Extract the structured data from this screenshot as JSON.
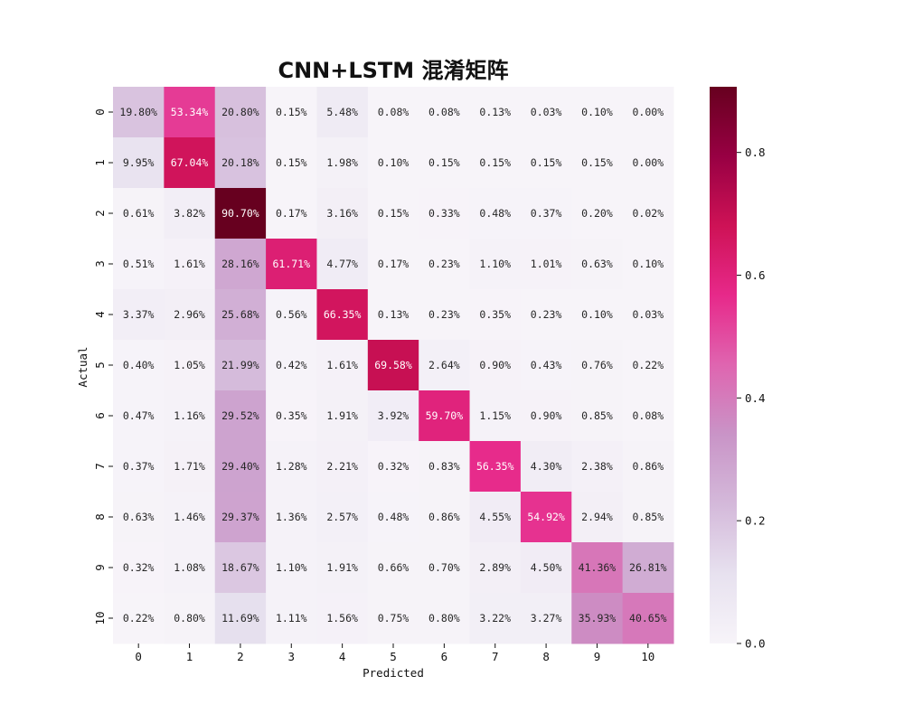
{
  "chart_data": {
    "type": "heatmap",
    "title": "CNN+LSTM 混淆矩阵",
    "xlabel": "Predicted",
    "ylabel": "Actual",
    "x_categories": [
      "0",
      "1",
      "2",
      "3",
      "4",
      "5",
      "6",
      "7",
      "8",
      "9",
      "10"
    ],
    "y_categories": [
      "0",
      "1",
      "2",
      "3",
      "4",
      "5",
      "6",
      "7",
      "8",
      "9",
      "10"
    ],
    "values": [
      [
        19.8,
        53.34,
        20.8,
        0.15,
        5.48,
        0.08,
        0.08,
        0.13,
        0.03,
        0.1,
        0.0
      ],
      [
        9.95,
        67.04,
        20.18,
        0.15,
        1.98,
        0.1,
        0.15,
        0.15,
        0.15,
        0.15,
        0.0
      ],
      [
        0.61,
        3.82,
        90.7,
        0.17,
        3.16,
        0.15,
        0.33,
        0.48,
        0.37,
        0.2,
        0.02
      ],
      [
        0.51,
        1.61,
        28.16,
        61.71,
        4.77,
        0.17,
        0.23,
        1.1,
        1.01,
        0.63,
        0.1
      ],
      [
        3.37,
        2.96,
        25.68,
        0.56,
        66.35,
        0.13,
        0.23,
        0.35,
        0.23,
        0.1,
        0.03
      ],
      [
        0.4,
        1.05,
        21.99,
        0.42,
        1.61,
        69.58,
        2.64,
        0.9,
        0.43,
        0.76,
        0.22
      ],
      [
        0.47,
        1.16,
        29.52,
        0.35,
        1.91,
        3.92,
        59.7,
        1.15,
        0.9,
        0.85,
        0.08
      ],
      [
        0.37,
        1.71,
        29.4,
        1.28,
        2.21,
        0.32,
        0.83,
        56.35,
        4.3,
        2.38,
        0.86
      ],
      [
        0.63,
        1.46,
        29.37,
        1.36,
        2.57,
        0.48,
        0.86,
        4.55,
        54.92,
        2.94,
        0.85
      ],
      [
        0.32,
        1.08,
        18.67,
        1.1,
        1.91,
        0.66,
        0.7,
        2.89,
        4.5,
        41.36,
        26.81
      ],
      [
        0.22,
        0.8,
        11.69,
        1.11,
        1.56,
        0.75,
        0.8,
        3.22,
        3.27,
        35.93,
        40.65
      ]
    ],
    "value_format": "percent",
    "colorbar": {
      "range": [
        0.0,
        0.907
      ],
      "ticks": [
        0.0,
        0.2,
        0.4,
        0.6,
        0.8
      ],
      "tick_labels": [
        "0.0",
        "0.2",
        "0.4",
        "0.6",
        "0.8"
      ]
    },
    "colormap": [
      "#f7f4f9",
      "#e7e1ef",
      "#d4b9da",
      "#c994c7",
      "#df65b0",
      "#e7298a",
      "#ce1256",
      "#980043",
      "#67001f"
    ]
  }
}
